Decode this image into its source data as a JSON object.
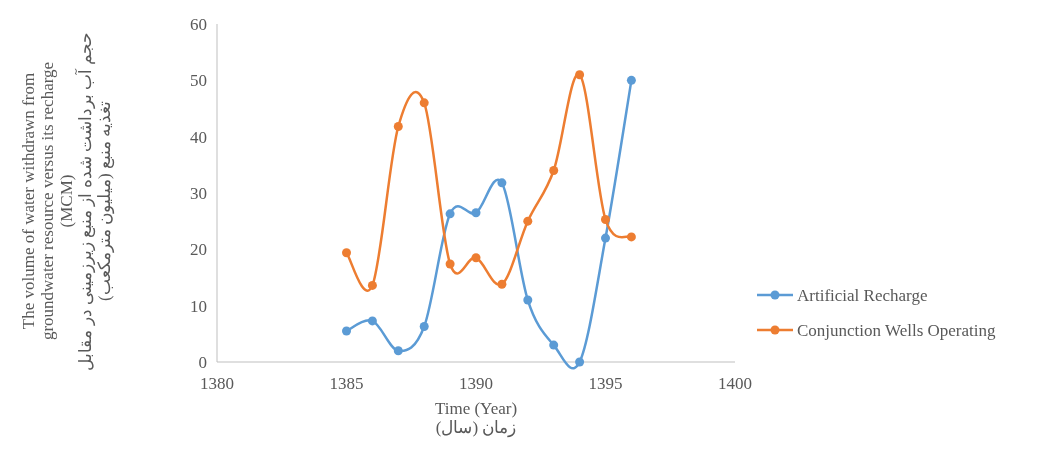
{
  "chart_data": {
    "type": "line",
    "xlabel": "Time (Year)\nزمان (سال)",
    "ylabel": "The volume of water withdrawn from\ngroundwater resource versus its recharge\n(MCM)\nحجم آب برداشت شده از منبع زیرزمینی در مقابل\nتغذیه منبع (میلیون مترمکعب)",
    "x": [
      1385,
      1386,
      1387,
      1388,
      1389,
      1390,
      1391,
      1392,
      1393,
      1394,
      1395,
      1396
    ],
    "series": [
      {
        "name": "Artificial Recharge",
        "color": "#5b9bd5",
        "values": [
          5.5,
          7.3,
          2,
          6.3,
          26.3,
          26.5,
          31.8,
          11,
          3,
          0,
          22,
          50
        ]
      },
      {
        "name": "Conjunction Wells Operating",
        "color": "#ed7d31",
        "values": [
          19.4,
          13.6,
          41.8,
          46,
          17.4,
          18.5,
          13.8,
          25,
          34,
          51,
          25.3,
          22.2
        ]
      }
    ],
    "xlim": [
      1380,
      1400
    ],
    "xticks": [
      1380,
      1385,
      1390,
      1395,
      1400
    ],
    "ylim": [
      0,
      60
    ],
    "yticks": [
      0,
      10,
      20,
      30,
      40,
      50,
      60
    ],
    "grid": false,
    "legend": "right",
    "marker": "circle",
    "line_style": "solid"
  }
}
